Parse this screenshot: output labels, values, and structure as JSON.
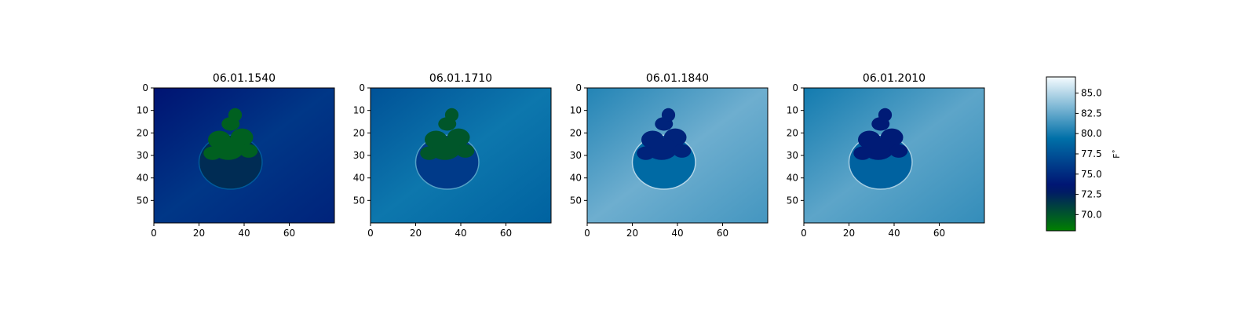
{
  "chart_data": {
    "type": "heatmap",
    "panels": [
      {
        "title": "06.01.1540",
        "xticks": [
          0,
          20,
          40,
          60
        ],
        "yticks": [
          0,
          10,
          20,
          30,
          40,
          50
        ],
        "xlim": [
          0,
          80
        ],
        "ylim": [
          60,
          0
        ],
        "background_temp": 75.0,
        "plant_temp": 69.5
      },
      {
        "title": "06.01.1710",
        "xticks": [
          0,
          20,
          40,
          60
        ],
        "yticks": [
          0,
          10,
          20,
          30,
          40,
          50
        ],
        "xlim": [
          0,
          80
        ],
        "ylim": [
          60,
          0
        ],
        "background_temp": 79.0,
        "plant_temp": 70.0
      },
      {
        "title": "06.01.1840",
        "xticks": [
          0,
          20,
          40,
          60
        ],
        "yticks": [
          0,
          10,
          20,
          30,
          40,
          50
        ],
        "xlim": [
          0,
          80
        ],
        "ylim": [
          60,
          0
        ],
        "background_temp": 82.0,
        "plant_temp": 74.5
      },
      {
        "title": "06.01.2010",
        "xticks": [
          0,
          20,
          40,
          60
        ],
        "yticks": [
          0,
          10,
          20,
          30,
          40,
          50
        ],
        "xlim": [
          0,
          80
        ],
        "ylim": [
          60,
          0
        ],
        "background_temp": 81.5,
        "plant_temp": 74.0
      }
    ],
    "colorbar": {
      "label": "F˚",
      "range": [
        68.0,
        87.0
      ],
      "ticks": [
        "70.0",
        "72.5",
        "75.0",
        "77.5",
        "80.0",
        "82.5",
        "85.0"
      ],
      "colors": [
        "#008000",
        "#001070",
        "#0070a8",
        "#f5fbff"
      ]
    }
  }
}
